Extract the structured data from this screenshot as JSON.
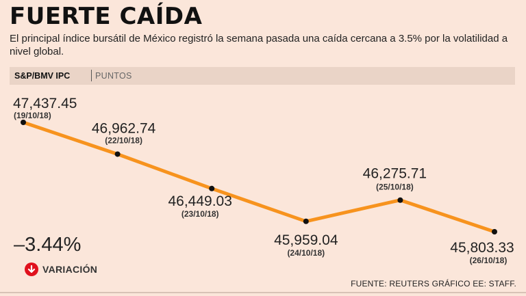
{
  "header": {
    "title": "FUERTE CAÍDA",
    "subtitle": "El principal índice bursátil de México registró la semana pasada una caída cercana a 3.5% por la volatilidad a nivel global."
  },
  "band": {
    "series_label": "S&P/BMV IPC",
    "unit_label": "PUNTOS"
  },
  "chart_data": {
    "type": "line",
    "title": "FUERTE CAÍDA",
    "series_name": "S&P/BMV IPC",
    "ylabel": "PUNTOS",
    "xlabel": "",
    "ylim": [
      45700,
      47500
    ],
    "line_color": "#f7931e",
    "point_color": "#111111",
    "points": [
      {
        "value": 47437.45,
        "label": "47,437.45",
        "date": "(19/10/18)"
      },
      {
        "value": 46962.74,
        "label": "46,962.74",
        "date": "(22/10/18)"
      },
      {
        "value": 46449.03,
        "label": "46,449.03",
        "date": "(23/10/18)"
      },
      {
        "value": 45959.04,
        "label": "45,959.04",
        "date": "(24/10/18)"
      },
      {
        "value": 46275.71,
        "label": "46,275.71",
        "date": "(25/10/18)"
      },
      {
        "value": 45803.33,
        "label": "45,803.33",
        "date": "(26/10/18)"
      }
    ]
  },
  "summary": {
    "variation_value": "–3.44%",
    "variation_label": "VARIACIÓN",
    "icon": "arrow-down-circle-icon",
    "icon_color": "#e0111d"
  },
  "footer": {
    "source": "FUENTE: REUTERS GRÁFICO EE: STAFF."
  }
}
